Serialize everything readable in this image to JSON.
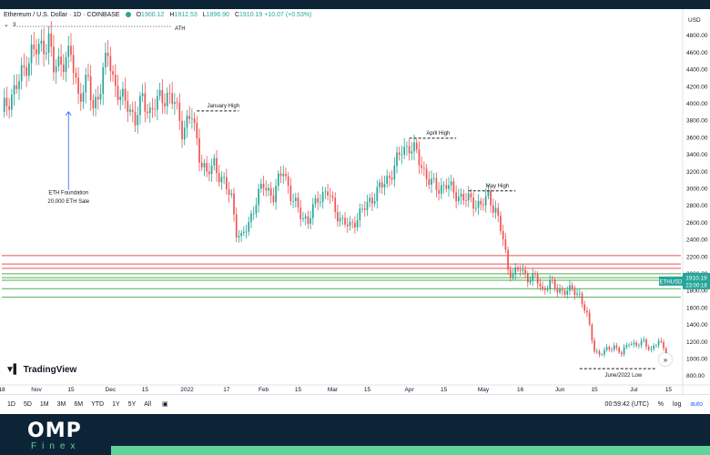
{
  "header": {
    "title": "Ethereum / U.S. Dollar · 1D · COINBASE",
    "o_label": "O",
    "o_value": "1900.12",
    "h_label": "H",
    "h_value": "1912.53",
    "l_label": "L",
    "l_value": "1896.90",
    "c_label": "C",
    "c_value": "1910.19 +10.07 (+0.53%)",
    "indicator_count": "3",
    "indicator_label": "ATH"
  },
  "axis": {
    "currency": "USD",
    "price_tag_symbol": "ETHUSD",
    "price_tag_value": "1910.19",
    "price_tag_timer": "23:00:18"
  },
  "bottom_bar": {
    "timeframes": [
      "1D",
      "5D",
      "1M",
      "3M",
      "6M",
      "YTD",
      "1Y",
      "5Y",
      "All"
    ],
    "clock": "00:59:42 (UTC)",
    "percent": "%",
    "log": "log",
    "auto": "auto"
  },
  "logo": {
    "text": "TradingView"
  },
  "brand": {
    "name": "OMP",
    "sub": "Finex"
  },
  "colors": {
    "up": "#26a69a",
    "down": "#ef5350",
    "resistance": "#ef5350",
    "support": "#4caf50",
    "background": "#0d2437",
    "brand_green": "#5fd39a",
    "arrow": "#2962ff"
  },
  "chart_data": {
    "type": "candlestick",
    "symbol": "Ethereum / U.S. Dollar",
    "interval": "1D",
    "exchange": "COINBASE",
    "ylim": [
      700,
      5000
    ],
    "y_ticks": [
      800,
      1000,
      1200,
      1400,
      1600,
      1800,
      2000,
      2200,
      2400,
      2600,
      2800,
      3000,
      3200,
      3400,
      3600,
      3800,
      4000,
      4200,
      4400,
      4600,
      4800
    ],
    "x_ticks": [
      {
        "label": "18",
        "day": 0
      },
      {
        "label": "Nov",
        "day": 14
      },
      {
        "label": "15",
        "day": 28
      },
      {
        "label": "Dec",
        "day": 44
      },
      {
        "label": "15",
        "day": 58
      },
      {
        "label": "2022",
        "day": 75
      },
      {
        "label": "17",
        "day": 91
      },
      {
        "label": "Feb",
        "day": 106
      },
      {
        "label": "15",
        "day": 120
      },
      {
        "label": "Mar",
        "day": 134
      },
      {
        "label": "15",
        "day": 148
      },
      {
        "label": "Apr",
        "day": 165
      },
      {
        "label": "15",
        "day": 179
      },
      {
        "label": "May",
        "day": 195
      },
      {
        "label": "16",
        "day": 210
      },
      {
        "label": "Jun",
        "day": 226
      },
      {
        "label": "15",
        "day": 240
      },
      {
        "label": "Jul",
        "day": 256
      },
      {
        "label": "15",
        "day": 270
      }
    ],
    "x_domain": [
      0,
      275
    ],
    "anchors": [
      [
        0,
        3900
      ],
      [
        6,
        4200
      ],
      [
        12,
        4600
      ],
      [
        15,
        4630
      ],
      [
        19,
        4750
      ],
      [
        21,
        4400
      ],
      [
        24,
        4500
      ],
      [
        28,
        4560
      ],
      [
        31,
        4100
      ],
      [
        35,
        4250
      ],
      [
        37,
        3950
      ],
      [
        40,
        4200
      ],
      [
        43,
        4600
      ],
      [
        45,
        4300
      ],
      [
        48,
        4050
      ],
      [
        51,
        4000
      ],
      [
        54,
        3800
      ],
      [
        57,
        4050
      ],
      [
        60,
        3900
      ],
      [
        64,
        4050
      ],
      [
        67,
        4100
      ],
      [
        70,
        4000
      ],
      [
        73,
        3700
      ],
      [
        77,
        3850
      ],
      [
        80,
        3400
      ],
      [
        83,
        3150
      ],
      [
        86,
        3300
      ],
      [
        89,
        3100
      ],
      [
        93,
        2900
      ],
      [
        95,
        2500
      ],
      [
        97,
        2400
      ],
      [
        100,
        2600
      ],
      [
        103,
        2850
      ],
      [
        106,
        3050
      ],
      [
        110,
        2900
      ],
      [
        114,
        3250
      ],
      [
        117,
        2900
      ],
      [
        120,
        2750
      ],
      [
        124,
        2600
      ],
      [
        128,
        2900
      ],
      [
        132,
        2950
      ],
      [
        135,
        2750
      ],
      [
        138,
        2600
      ],
      [
        141,
        2550
      ],
      [
        145,
        2700
      ],
      [
        149,
        2850
      ],
      [
        153,
        3000
      ],
      [
        156,
        3100
      ],
      [
        159,
        3250
      ],
      [
        162,
        3450
      ],
      [
        165,
        3500
      ],
      [
        168,
        3400
      ],
      [
        171,
        3200
      ],
      [
        174,
        3050
      ],
      [
        177,
        3000
      ],
      [
        180,
        3050
      ],
      [
        183,
        2950
      ],
      [
        186,
        2900
      ],
      [
        190,
        2850
      ],
      [
        194,
        2800
      ],
      [
        197,
        2900
      ],
      [
        200,
        2750
      ],
      [
        203,
        2400
      ],
      [
        205,
        2050
      ],
      [
        207,
        2000
      ],
      [
        210,
        2050
      ],
      [
        213,
        1950
      ],
      [
        216,
        1950
      ],
      [
        219,
        1800
      ],
      [
        222,
        1900
      ],
      [
        225,
        1800
      ],
      [
        228,
        1800
      ],
      [
        231,
        1800
      ],
      [
        234,
        1750
      ],
      [
        237,
        1500
      ],
      [
        240,
        1100
      ],
      [
        242,
        1050
      ],
      [
        245,
        1100
      ],
      [
        248,
        1150
      ],
      [
        251,
        1050
      ],
      [
        254,
        1200
      ],
      [
        257,
        1150
      ],
      [
        260,
        1200
      ],
      [
        263,
        1100
      ],
      [
        266,
        1200
      ],
      [
        269,
        1100
      ]
    ],
    "horizontal_lines": [
      {
        "price": 2210,
        "color": "resistance"
      },
      {
        "price": 2110,
        "color": "resistance"
      },
      {
        "price": 2060,
        "color": "resistance"
      },
      {
        "price": 1995,
        "color": "support"
      },
      {
        "price": 1950,
        "color": "support"
      },
      {
        "price": 1920,
        "color": "support"
      },
      {
        "price": 1820,
        "color": "support"
      },
      {
        "price": 1720,
        "color": "support"
      }
    ],
    "annotations": [
      {
        "text": "January High",
        "level": 3910,
        "day_from": 79,
        "day_to": 96
      },
      {
        "text": "April High",
        "level": 3590,
        "day_from": 165,
        "day_to": 184
      },
      {
        "text": "May High",
        "level": 2970,
        "day_from": 189,
        "day_to": 208
      },
      {
        "text": "June/2022 Low",
        "level": 880,
        "day_from": 234,
        "day_to": 265
      },
      {
        "text": "ETH Foundation",
        "day": 27,
        "level": 2930
      },
      {
        "text": "20,000 ETH Sale",
        "day": 27,
        "level": 2830
      }
    ]
  }
}
